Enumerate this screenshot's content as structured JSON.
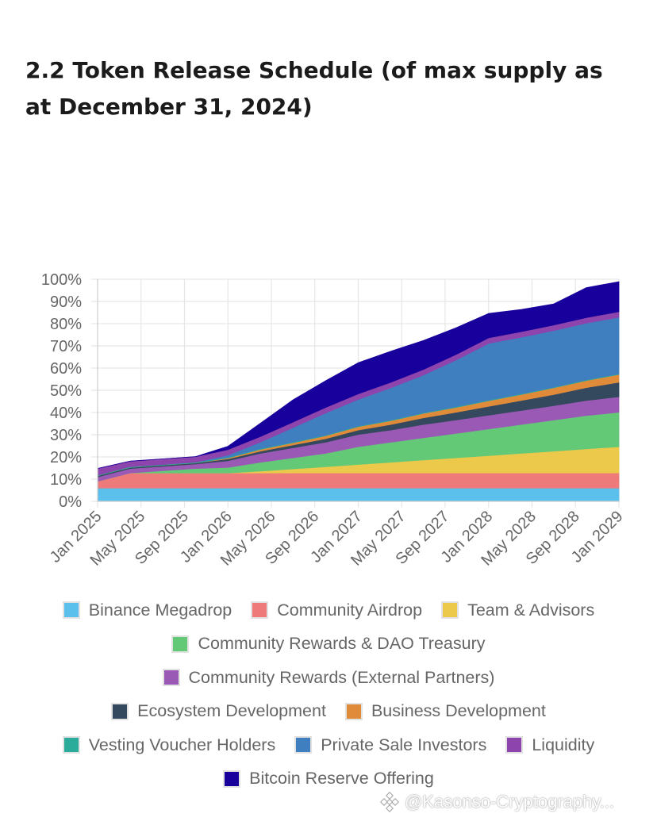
{
  "page": {
    "title": "2.2 Token Release Schedule (of max supply as at December 31, 2024)"
  },
  "watermark": {
    "text": "@Kasonso-Cryptography..."
  },
  "chart_data": {
    "type": "area",
    "stacked": true,
    "title": "",
    "xlabel": "",
    "ylabel": "",
    "x_tick_labels": [
      "Jan 2025",
      "May 2025",
      "Sep 2025",
      "Jan 2026",
      "May 2026",
      "Sep 2026",
      "Jan 2027",
      "May 2027",
      "Sep 2027",
      "Jan 2028",
      "May 2028",
      "Sep 2028",
      "Jan 2029"
    ],
    "y_tick_labels": [
      "0%",
      "10%",
      "20%",
      "30%",
      "40%",
      "50%",
      "60%",
      "70%",
      "80%",
      "90%",
      "100%"
    ],
    "ylim": [
      0,
      100
    ],
    "y_unit": "%",
    "grid": true,
    "legend_position": "bottom",
    "x": [
      "2025-01",
      "2025-04",
      "2025-07",
      "2025-10",
      "2026-01",
      "2026-04",
      "2026-07",
      "2026-10",
      "2027-01",
      "2027-04",
      "2027-07",
      "2027-10",
      "2028-01",
      "2028-04",
      "2028-07",
      "2028-10",
      "2029-01"
    ],
    "series": [
      {
        "name": "Binance Megadrop",
        "color": "#5bc0eb",
        "values": [
          6,
          6,
          6,
          6,
          6,
          6,
          6,
          6,
          6,
          6,
          6,
          6,
          6,
          6,
          6,
          6,
          6
        ]
      },
      {
        "name": "Community Airdrop",
        "color": "#ee7a7a",
        "values": [
          3,
          6.8,
          6.8,
          6.8,
          6.8,
          6.8,
          6.8,
          6.8,
          6.8,
          6.8,
          6.8,
          6.8,
          6.8,
          6.8,
          6.8,
          6.8,
          6.8
        ]
      },
      {
        "name": "Team & Advisors",
        "color": "#ecc94b",
        "values": [
          0,
          0,
          0,
          0,
          0,
          0.8,
          1.8,
          2.8,
          3.8,
          4.8,
          5.8,
          6.8,
          7.8,
          8.8,
          9.8,
          10.8,
          11.8
        ]
      },
      {
        "name": "Community Rewards & DAO Treasury",
        "color": "#63c977",
        "values": [
          0,
          0,
          1,
          2,
          2.5,
          4,
          5,
          6,
          8,
          9,
          10,
          11,
          12,
          13,
          14,
          15,
          15.5
        ]
      },
      {
        "name": "Community Rewards (External Partners)",
        "color": "#9b59b6",
        "values": [
          2,
          2,
          2,
          2,
          3,
          4,
          4.5,
          5,
          5.5,
          5.5,
          6,
          6,
          6.2,
          6.3,
          6.5,
          6.8,
          7
        ]
      },
      {
        "name": "Ecosystem Development",
        "color": "#34495e",
        "values": [
          0.5,
          0.5,
          0.5,
          0.5,
          0.8,
          1,
          1.3,
          1.6,
          2,
          2.5,
          3,
          3.5,
          4,
          4.5,
          5,
          5.8,
          6.5
        ]
      },
      {
        "name": "Business Development",
        "color": "#e08b3a",
        "values": [
          0,
          0,
          0,
          0,
          0.4,
          0.8,
          1,
          1.3,
          1.5,
          1.7,
          2,
          2.2,
          2.5,
          2.7,
          3,
          3.2,
          3.5
        ]
      },
      {
        "name": "Vesting Voucher Holders",
        "color": "#2bab9a",
        "values": [
          0.3,
          0.3,
          0.3,
          0.3,
          0.3,
          0.3,
          0.3,
          0.3,
          0.3,
          0.3,
          0.3,
          0.3,
          0.3,
          0.3,
          0.3,
          0.3,
          0.3
        ]
      },
      {
        "name": "Private Sale Investors",
        "color": "#3f7fbf",
        "values": [
          0,
          0,
          0,
          0,
          1,
          3,
          6.5,
          10,
          12,
          14.5,
          17,
          21,
          25.5,
          25.5,
          25.5,
          25.5,
          25.5
        ]
      },
      {
        "name": "Liquidity",
        "color": "#8e44ad",
        "values": [
          3,
          2.5,
          2.5,
          2.5,
          2.5,
          2.5,
          2.5,
          2.5,
          2.5,
          2.5,
          2.5,
          2.5,
          2.5,
          2.5,
          2.5,
          2.5,
          2.5
        ]
      },
      {
        "name": "Bitcoin Reserve Offering",
        "color": "#17009b",
        "values": [
          0,
          0,
          0,
          0,
          1.5,
          6,
          10,
          12,
          14,
          14,
          13,
          12,
          11,
          10,
          9.5,
          13.5,
          13.5
        ]
      }
    ]
  }
}
